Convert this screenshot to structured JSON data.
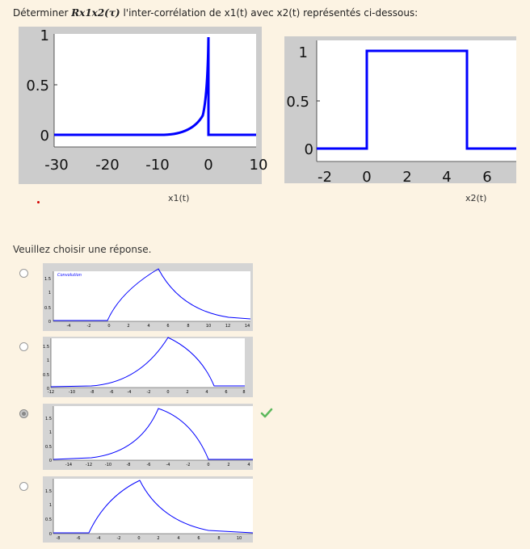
{
  "question": {
    "prefix": "Déterminer ",
    "math": "Rx1x2(τ)",
    "suffix": " l'inter-corrélation de x1(t) avec x2(t) représentés ci-dessous:"
  },
  "figures": {
    "x1": {
      "caption": "x1(t)",
      "xticks": [
        "-30",
        "-20",
        "-10",
        "0",
        "10"
      ],
      "yticks": [
        "0",
        "0.5",
        "1"
      ]
    },
    "x2": {
      "caption": "x2(t)",
      "xticks": [
        "-2",
        "0",
        "2",
        "4",
        "6"
      ],
      "yticks": [
        "0",
        "0.5",
        "1"
      ]
    }
  },
  "prompt": "Veuillez choisir une réponse.",
  "options": [
    {
      "selected": false,
      "title": "Convolution",
      "xticks": [
        "-4",
        "-2",
        "0",
        "2",
        "4",
        "6",
        "8",
        "10",
        "12",
        "14"
      ],
      "yticks": [
        "0",
        "0.5",
        "1",
        "1.5"
      ]
    },
    {
      "selected": false,
      "title": "",
      "xticks": [
        "-12",
        "-10",
        "-8",
        "-6",
        "-4",
        "-2",
        "0",
        "2",
        "4",
        "6",
        "8"
      ],
      "yticks": [
        "0",
        "0.5",
        "1",
        "1.5"
      ]
    },
    {
      "selected": true,
      "correct": true,
      "title": "",
      "xticks": [
        "-14",
        "-12",
        "-10",
        "-8",
        "-6",
        "-4",
        "-2",
        "0",
        "2",
        "4"
      ],
      "yticks": [
        "0",
        "0.5",
        "1",
        "1.5"
      ]
    },
    {
      "selected": false,
      "title": "",
      "xticks": [
        "-8",
        "-6",
        "-4",
        "-2",
        "0",
        "2",
        "4",
        "6",
        "8",
        "10"
      ],
      "yticks": [
        "0",
        "0.5",
        "1",
        "1.5"
      ]
    }
  ],
  "colors": {
    "curve": "#0000ff",
    "check": "#5cb85c",
    "red_dot": "#d40000"
  },
  "icons": {
    "check": "check-icon"
  }
}
